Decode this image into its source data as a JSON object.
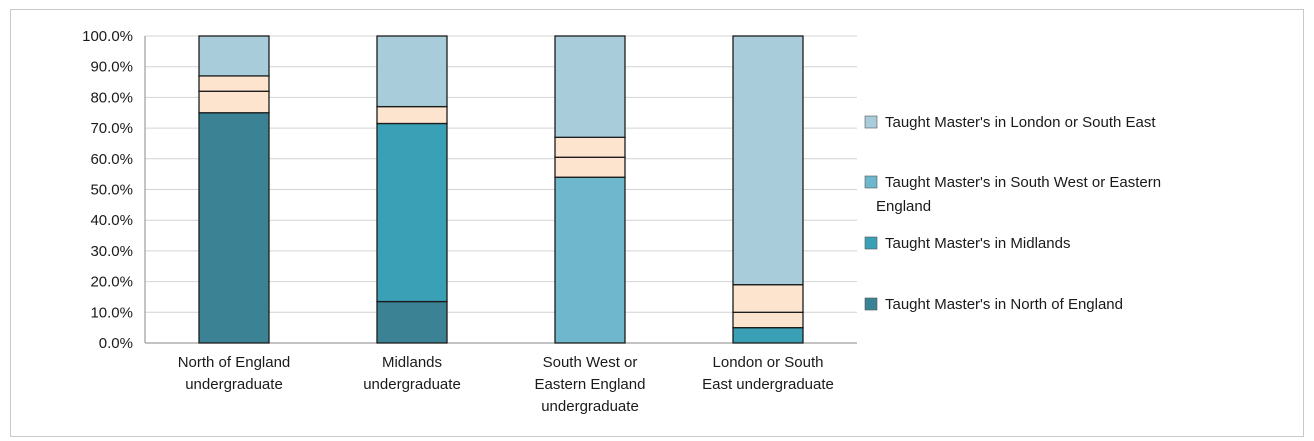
{
  "chart_data": {
    "type": "bar",
    "stacked": true,
    "categories": [
      "North of England undergraduate",
      "Midlands undergraduate",
      "South West or Eastern England undergraduate",
      "London or South East undergraduate"
    ],
    "category_lines": [
      [
        "North of England",
        "undergraduate"
      ],
      [
        "Midlands",
        "undergraduate"
      ],
      [
        "South West or",
        "Eastern England",
        "undergraduate"
      ],
      [
        "London or South",
        "East undergraduate"
      ]
    ],
    "y_ticks": [
      "0.0%",
      "10.0%",
      "20.0%",
      "30.0%",
      "40.0%",
      "50.0%",
      "60.0%",
      "70.0%",
      "80.0%",
      "90.0%",
      "100.0%"
    ],
    "ylim": [
      0,
      100
    ],
    "grid": true,
    "legend_position": "right",
    "series": [
      {
        "name": "Taught Master's in North of England",
        "color": "#3b8294",
        "values": [
          75,
          13.5,
          0,
          0
        ]
      },
      {
        "name": "Taught Master's in Midlands",
        "color": "#3aa0b6",
        "values": [
          0,
          58,
          0,
          5
        ]
      },
      {
        "name": "Taught Master's in South West or Eastern England",
        "color": "#6fb7cc",
        "values": [
          0,
          0,
          54,
          0
        ]
      },
      {
        "name": "",
        "color": "#fde4cf",
        "values": [
          7,
          0,
          6.5,
          5
        ]
      },
      {
        "name": "",
        "color": "#fde4cf",
        "values": [
          5,
          5.5,
          6.5,
          9
        ]
      },
      {
        "name": "Taught Master's in London or South East",
        "color": "#a8ccda",
        "values": [
          13,
          23,
          33,
          81
        ]
      }
    ],
    "legend": [
      {
        "lines": [
          "Taught Master's in London or South East"
        ],
        "color": "#a8ccda"
      },
      {
        "lines": [
          "Taught Master's in South West or Eastern",
          "England"
        ],
        "color": "#6fb7cc"
      },
      {
        "lines": [
          "Taught Master's in Midlands"
        ],
        "color": "#3aa0b6"
      },
      {
        "lines": [
          "Taught Master's in North of England"
        ],
        "color": "#3b8294"
      }
    ]
  }
}
